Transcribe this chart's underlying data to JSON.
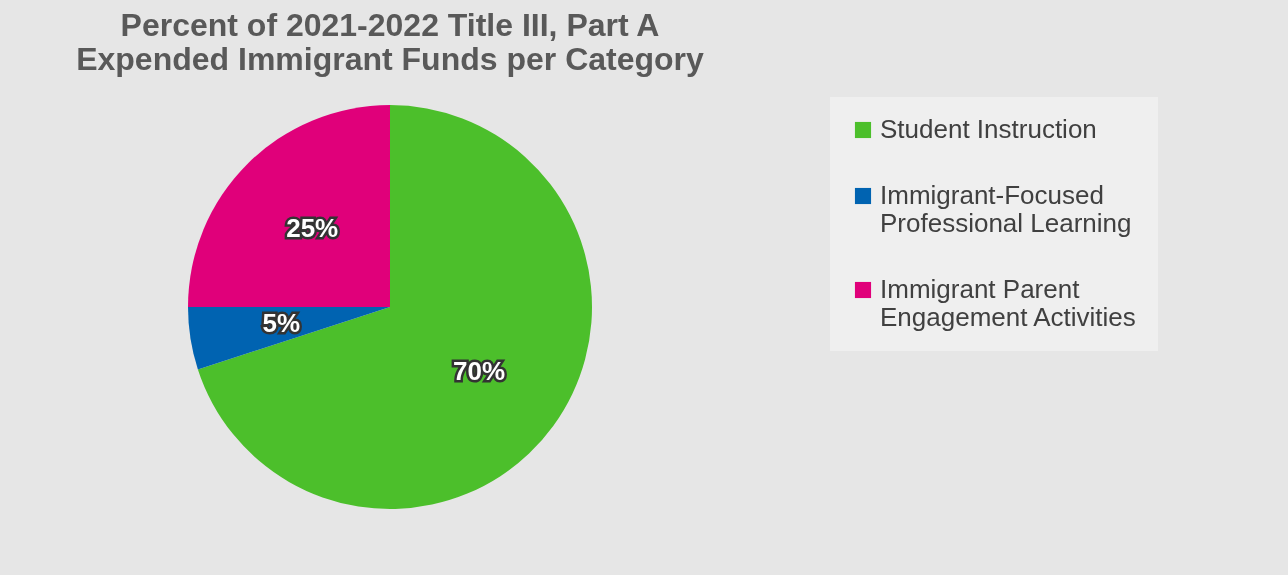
{
  "chart_data": {
    "type": "pie",
    "title": "Percent of 2021-2022 Title III, Part A Expended Immigrant Funds per Category",
    "categories": [
      "Student Instruction",
      "Immigrant-Focused Professional Learning",
      "Immigrant Parent Engagement Activities"
    ],
    "values": [
      70,
      5,
      25
    ],
    "colors": [
      "#4cbf2b",
      "#0063b1",
      "#e0007a"
    ],
    "value_labels": [
      "70%",
      "5%",
      "25%"
    ],
    "legend": "right"
  }
}
